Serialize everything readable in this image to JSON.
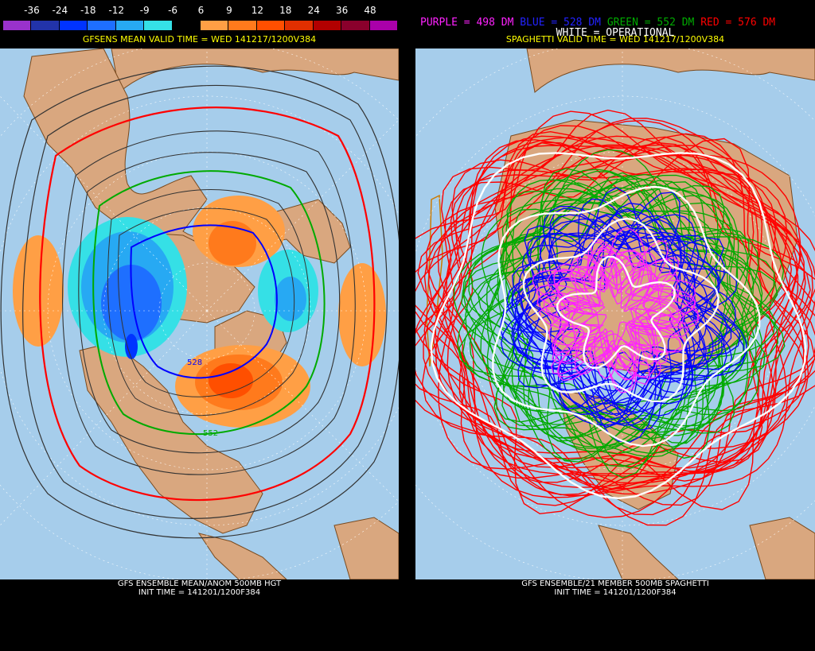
{
  "left": {
    "legend": {
      "values": [
        "-36",
        "-24",
        "-18",
        "-12",
        "-9",
        "-6",
        "6",
        "9",
        "12",
        "18",
        "24",
        "36",
        "48"
      ],
      "colors": [
        "#9932cc",
        "#2233aa",
        "#0033ff",
        "#1e6fff",
        "#27a9f3",
        "#35e0e6",
        "#000000",
        "#ff9f45",
        "#ff7a1c",
        "#ff4f00",
        "#e02f00",
        "#b20000",
        "#8a002c",
        "#aa00aa"
      ]
    },
    "valid_time": "GFSENS MEAN VALID TIME = WED 141217/1200V384",
    "footer_line1": "GFS ENSEMBLE MEAN/ANOM 500MB HGT",
    "footer_line2": "INIT TIME = 141201/1200F384",
    "contour_label_528": "528",
    "contour_label_552": "552"
  },
  "right": {
    "legend": {
      "purple_label": "PURPLE = 498 DM",
      "blue_label": "BLUE = 528 DM",
      "green_label": "GREEN = 552 DM",
      "red_label": "RED = 576 DM",
      "white_label": "WHITE = OPERATIONAL",
      "purple_color": "#ff22ff",
      "blue_color": "#0000ff",
      "green_color": "#00aa00",
      "red_color": "#ff0000"
    },
    "valid_time": "SPAGHETTI VALID TIME = WED 141217/1200V384",
    "footer_line1": "GFS ENSEMBLE/21 MEMBER 500MB SPAGHETTI",
    "footer_line2": "INIT TIME = 141201/1200F384"
  },
  "map_colors": {
    "ocean": "#a6cdeb",
    "land": "#d9a77f",
    "border": "#7a4a1e",
    "grid": "#ffffff"
  }
}
